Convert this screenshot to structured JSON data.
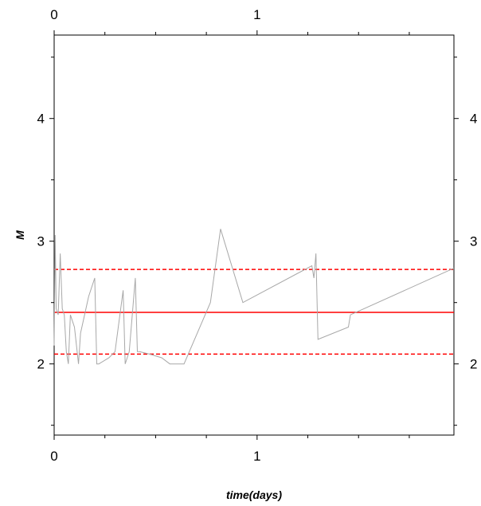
{
  "chart_data": {
    "type": "line",
    "title": "",
    "xlabel": "time(days)",
    "ylabel": "M",
    "xlim": [
      0,
      1.97
    ],
    "ylim": [
      1.42,
      4.68
    ],
    "x_ticks": [
      {
        "value": 0,
        "label": "0"
      },
      {
        "value": 1,
        "label": "1"
      }
    ],
    "y_ticks": [
      {
        "value": 2,
        "label": "2"
      },
      {
        "value": 3,
        "label": "3"
      },
      {
        "value": 4,
        "label": "4"
      }
    ],
    "grid": false,
    "legend": "none",
    "series": [
      {
        "color": "#a8a8a8",
        "style": "solid",
        "x": [
          0,
          0.005,
          0.01,
          0.02,
          0.03,
          0.04,
          0.05,
          0.06,
          0.07,
          0.08,
          0.09,
          0.1,
          0.12,
          0.13,
          0.15,
          0.17,
          0.2,
          0.21,
          0.22,
          0.27,
          0.3,
          0.34,
          0.35,
          0.36,
          0.37,
          0.4,
          0.41,
          0.42,
          0.47,
          0.53,
          0.57,
          0.64,
          0.77,
          0.82,
          0.93,
          1.27,
          1.28,
          1.29,
          1.3,
          1.45,
          1.46,
          1.97
        ],
        "y": [
          2.15,
          3.05,
          2.45,
          2.4,
          2.9,
          2.45,
          2.4,
          2.1,
          2.0,
          2.4,
          2.35,
          2.3,
          2.0,
          2.25,
          2.4,
          2.55,
          2.7,
          2.0,
          2.0,
          2.05,
          2.1,
          2.6,
          2.0,
          2.05,
          2.1,
          2.7,
          2.1,
          2.1,
          2.08,
          2.05,
          2.0,
          2.0,
          2.5,
          3.1,
          2.5,
          2.8,
          2.7,
          2.9,
          2.2,
          2.3,
          2.4,
          2.78
        ]
      }
    ],
    "reference_lines": [
      {
        "y": 2.42,
        "color": "#ff0000",
        "style": "solid"
      },
      {
        "y": 2.77,
        "color": "#ff0000",
        "style": "dashed"
      },
      {
        "y": 2.08,
        "color": "#ff0000",
        "style": "dashed"
      }
    ]
  }
}
